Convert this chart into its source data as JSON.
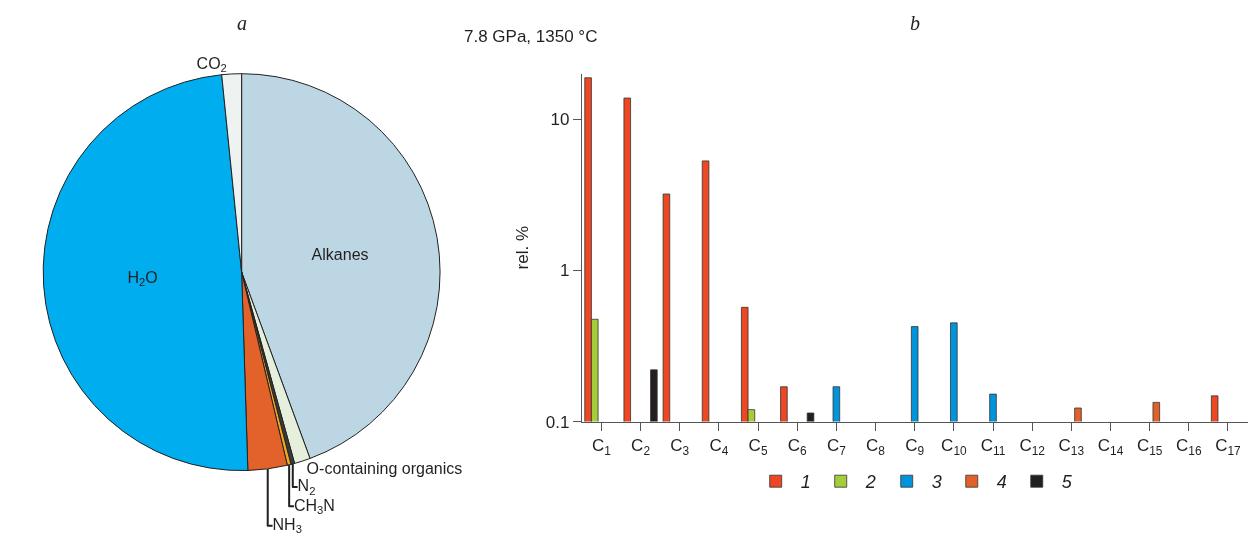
{
  "chart_data": [
    {
      "type": "pie",
      "title": "a",
      "categories": [
        "Alkanes",
        "O-containing organics",
        "N$_{2}$",
        "CH$_{3}$N",
        "NH$_{3}$",
        "H$_{2}$O",
        "CO$_{2}$"
      ],
      "values": [
        44.4,
        1.3,
        0.3,
        0.3,
        3.2,
        48.9,
        1.6
      ],
      "colors": [
        "#bcd7e3",
        "#e6eedc",
        "#3a3a3a",
        "#f2a81d",
        "#e2622a",
        "#00aeef",
        "#eef2f0"
      ]
    },
    {
      "type": "bar",
      "title": "b",
      "subtitle": "7.8 GPa, 1350 °C",
      "ylabel": "rel. %",
      "categories": [
        "C$_{1}$",
        "C$_{2}$",
        "C$_{3}$",
        "C$_{4}$",
        "C$_{5}$",
        "C$_{6}$",
        "C$_{7}$",
        "C$_{8}$",
        "C$_{9}$",
        "C$_{10}$",
        "C$_{11}$",
        "C$_{12}$",
        "C$_{13}$",
        "C$_{14}$",
        "C$_{15}$",
        "C$_{16}$",
        "C$_{17}$"
      ],
      "series": [
        {
          "name": "1",
          "color": "#ee4723",
          "values": [
            18.8,
            13.8,
            3.2,
            5.3,
            0.57,
            0.17,
            null,
            null,
            null,
            null,
            null,
            null,
            null,
            null,
            null,
            null,
            0.148
          ]
        },
        {
          "name": "2",
          "color": "#a5cd39",
          "values": [
            0.475,
            null,
            null,
            null,
            0.12,
            null,
            null,
            null,
            null,
            null,
            null,
            null,
            null,
            null,
            null,
            null,
            null
          ]
        },
        {
          "name": "3",
          "color": "#0095da",
          "values": [
            null,
            null,
            null,
            null,
            null,
            null,
            0.17,
            null,
            0.425,
            0.45,
            0.152,
            null,
            null,
            null,
            null,
            null,
            null
          ]
        },
        {
          "name": "4",
          "color": "#e0622a",
          "values": [
            null,
            null,
            null,
            null,
            null,
            null,
            null,
            null,
            null,
            null,
            null,
            null,
            0.123,
            null,
            0.134,
            null,
            null
          ]
        },
        {
          "name": "5",
          "color": "#231f20",
          "values": [
            null,
            0.22,
            null,
            null,
            null,
            0.114,
            null,
            null,
            null,
            null,
            null,
            null,
            null,
            null,
            null,
            null,
            null
          ]
        }
      ],
      "log": true,
      "ylim": [
        0.1,
        20
      ],
      "yticks": [
        0.1,
        1,
        10
      ],
      "legend": "bottom"
    }
  ]
}
